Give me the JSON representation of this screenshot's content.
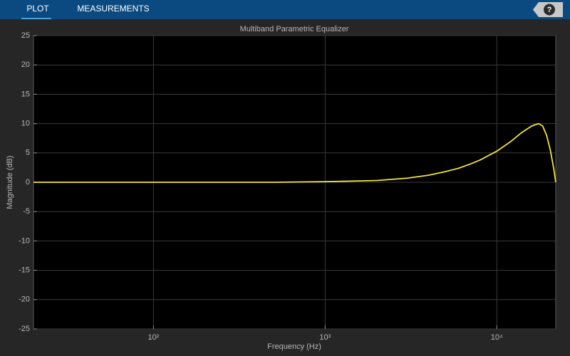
{
  "toolbar": {
    "tabs": [
      "PLOT",
      "MEASUREMENTS"
    ],
    "help": "?"
  },
  "chart_data": {
    "type": "line",
    "title": "Multiband Parametric Equalizer",
    "xlabel": "Frequency (Hz)",
    "ylabel": "Magnitude (dB)",
    "xscale": "log",
    "grid": true,
    "color": "#f2e33a",
    "x": [
      20,
      100,
      500,
      1000,
      2000,
      3000,
      4000,
      5000,
      6000,
      7000,
      8000,
      10000,
      12000,
      14000,
      16000,
      17500,
      18500,
      19500,
      20500,
      21500,
      22050
    ],
    "values": [
      0,
      0,
      0,
      0.1,
      0.3,
      0.7,
      1.2,
      1.8,
      2.4,
      3.1,
      3.8,
      5.3,
      6.9,
      8.5,
      9.6,
      10,
      9.6,
      8,
      5.5,
      2.2,
      0
    ],
    "xlim": [
      20,
      22050
    ],
    "xticks": [
      {
        "value": 100,
        "label": "10²"
      },
      {
        "value": 1000,
        "label": "10³"
      },
      {
        "value": 10000,
        "label": "10⁴"
      }
    ],
    "ylim": [
      -25,
      25
    ],
    "yticks": [
      -25,
      -20,
      -15,
      -10,
      -5,
      0,
      5,
      10,
      15,
      20,
      25
    ]
  }
}
